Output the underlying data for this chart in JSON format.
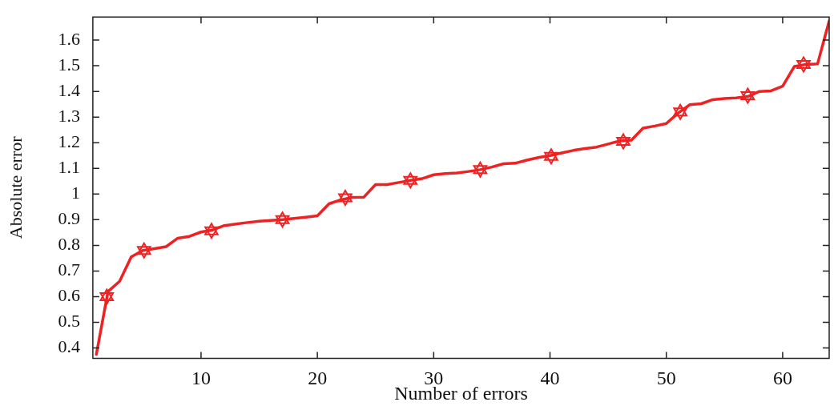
{
  "chart_data": {
    "type": "line",
    "xlabel": "Number of errors",
    "ylabel": "Absolute error",
    "xlim": [
      0.7,
      64
    ],
    "xticks": [
      10,
      20,
      30,
      40,
      50,
      60
    ],
    "ylim": [
      0.36,
      1.69
    ],
    "yticks": [
      0.4,
      0.5,
      0.6,
      0.7,
      0.8,
      0.9,
      1,
      1.1,
      1.2,
      1.3,
      1.4,
      1.5,
      1.6
    ],
    "grid": false,
    "legend": false,
    "line_style": "solid",
    "series": [
      {
        "color": "#ee2222",
        "marker": "none",
        "x": [
          1,
          2,
          3,
          4,
          5,
          6,
          7,
          8,
          9,
          10,
          11,
          12,
          13,
          14,
          15,
          16,
          17,
          18,
          19,
          20,
          21,
          22,
          23,
          24,
          25,
          26,
          27,
          28,
          29,
          30,
          31,
          32,
          33,
          34,
          35,
          36,
          37,
          38,
          39,
          40,
          41,
          42,
          43,
          44,
          45,
          46,
          47,
          48,
          49,
          50,
          51,
          52,
          53,
          54,
          55,
          56,
          57,
          58,
          59,
          60,
          61,
          62,
          63,
          64
        ],
        "values": [
          0.375,
          0.62,
          0.66,
          0.755,
          0.78,
          0.787,
          0.795,
          0.828,
          0.835,
          0.852,
          0.86,
          0.877,
          0.883,
          0.889,
          0.894,
          0.897,
          0.9,
          0.905,
          0.91,
          0.915,
          0.962,
          0.977,
          0.987,
          0.988,
          1.037,
          1.037,
          1.045,
          1.053,
          1.06,
          1.075,
          1.08,
          1.082,
          1.088,
          1.095,
          1.105,
          1.118,
          1.12,
          1.132,
          1.142,
          1.15,
          1.16,
          1.17,
          1.177,
          1.183,
          1.195,
          1.207,
          1.21,
          1.257,
          1.265,
          1.275,
          1.315,
          1.348,
          1.352,
          1.368,
          1.372,
          1.375,
          1.38,
          1.4,
          1.402,
          1.42,
          1.497,
          1.505,
          1.507,
          1.675
        ]
      },
      {
        "type": "scatter",
        "color": "#ee2222",
        "marker": "star",
        "x": [
          1.9,
          5.1,
          10.9,
          17,
          22.4,
          28,
          34,
          40.1,
          46.3,
          51.2,
          57,
          61.8
        ],
        "values": [
          0.6,
          0.78,
          0.857,
          0.9,
          0.985,
          1.053,
          1.095,
          1.147,
          1.205,
          1.32,
          1.383,
          1.505
        ]
      }
    ]
  }
}
